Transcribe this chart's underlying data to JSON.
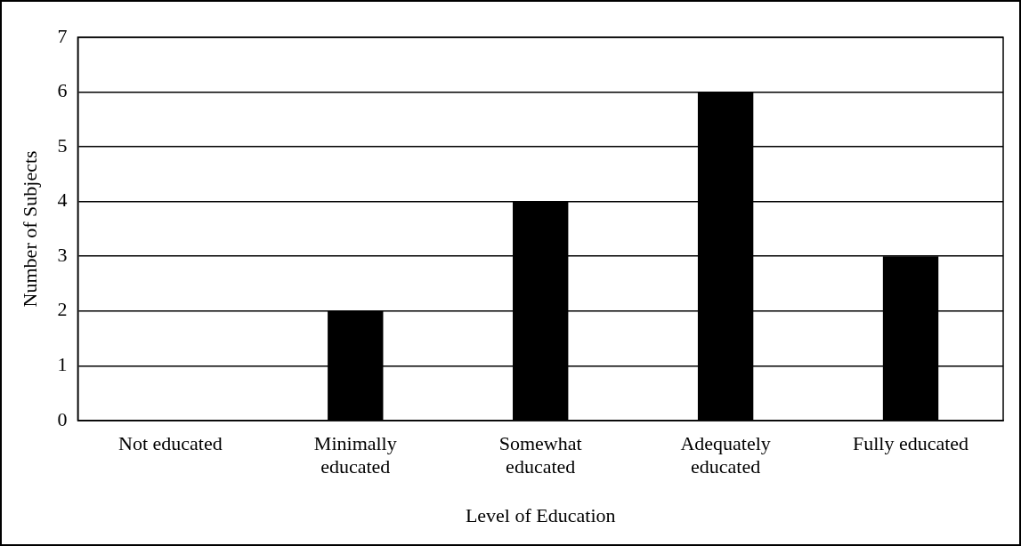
{
  "chart_data": {
    "type": "bar",
    "xlabel": "Level of Education",
    "ylabel": "Number of Subjects",
    "categories": [
      "Not educated",
      "Minimally educated",
      "Somewhat educated",
      "Adequately educated",
      "Fully educated"
    ],
    "values": [
      0,
      2,
      4,
      6,
      3
    ],
    "color": "#000000",
    "ylim": [
      0,
      7
    ],
    "yticks": [
      0,
      1,
      2,
      3,
      4,
      5,
      6,
      7
    ],
    "grid": "y",
    "legend": false
  }
}
